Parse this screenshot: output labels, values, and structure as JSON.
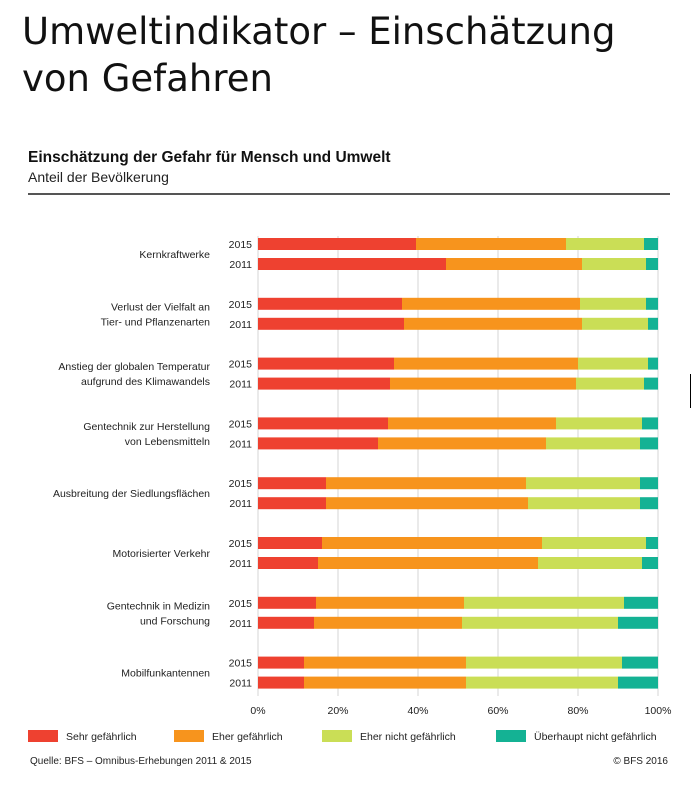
{
  "page_title": "Umweltindikator – Einschätzung von Gefahren",
  "chart_data": {
    "type": "bar",
    "orientation": "horizontal",
    "stacked": "percent",
    "title": "Einschätzung der Gefahr für Mensch und Umwelt",
    "subtitle": "Anteil der Bevölkerung",
    "xlim": [
      0,
      100
    ],
    "x_ticks": [
      "0%",
      "20%",
      "40%",
      "60%",
      "80%",
      "100%"
    ],
    "grid": true,
    "legend_position": "bottom",
    "series": [
      {
        "name": "Sehr gefährlich",
        "color": "#EE4130"
      },
      {
        "name": "Eher gefährlich",
        "color": "#F7941D"
      },
      {
        "name": "Eher nicht gefährlich",
        "color": "#CADE56"
      },
      {
        "name": "Überhaupt nicht gefährlich",
        "color": "#14B294"
      }
    ],
    "categories": [
      {
        "label": [
          "Kernkraftwerke"
        ],
        "rows": [
          {
            "year": "2015",
            "values": [
              39.5,
              37.5,
              19.5,
              3.5
            ]
          },
          {
            "year": "2011",
            "values": [
              47,
              34,
              16,
              3
            ]
          }
        ]
      },
      {
        "label": [
          "Verlust der Vielfalt an",
          "Tier- und Pflanzenarten"
        ],
        "rows": [
          {
            "year": "2015",
            "values": [
              36,
              44.5,
              16.5,
              3
            ]
          },
          {
            "year": "2011",
            "values": [
              36.5,
              44.5,
              16.5,
              2.5
            ]
          }
        ]
      },
      {
        "label": [
          "Anstieg der globalen Temperatur",
          "aufgrund des Klimawandels"
        ],
        "rows": [
          {
            "year": "2015",
            "values": [
              34,
              46,
              17.5,
              2.5
            ]
          },
          {
            "year": "2011",
            "values": [
              33,
              46.5,
              17,
              3.5
            ]
          }
        ]
      },
      {
        "label": [
          "Gentechnik zur Herstellung",
          "von Lebensmitteln"
        ],
        "rows": [
          {
            "year": "2015",
            "values": [
              32.5,
              42,
              21.5,
              4
            ]
          },
          {
            "year": "2011",
            "values": [
              30,
              42,
              23.5,
              4.5
            ]
          }
        ]
      },
      {
        "label": [
          "Ausbreitung der Siedlungsflächen"
        ],
        "rows": [
          {
            "year": "2015",
            "values": [
              17,
              50,
              28.5,
              4.5
            ]
          },
          {
            "year": "2011",
            "values": [
              17,
              50.5,
              28,
              4.5
            ]
          }
        ]
      },
      {
        "label": [
          "Motorisierter Verkehr"
        ],
        "rows": [
          {
            "year": "2015",
            "values": [
              16,
              55,
              26,
              3
            ]
          },
          {
            "year": "2011",
            "values": [
              15,
              55,
              26,
              4
            ]
          }
        ]
      },
      {
        "label": [
          "Gentechnik in Medizin",
          "und Forschung"
        ],
        "rows": [
          {
            "year": "2015",
            "values": [
              14.5,
              37,
              40,
              8.5
            ]
          },
          {
            "year": "2011",
            "values": [
              14,
              37,
              39,
              10
            ]
          }
        ]
      },
      {
        "label": [
          "Mobilfunkantennen"
        ],
        "rows": [
          {
            "year": "2015",
            "values": [
              11.5,
              40.5,
              39,
              9
            ]
          },
          {
            "year": "2011",
            "values": [
              11.5,
              40.5,
              38,
              10
            ]
          }
        ]
      }
    ]
  },
  "footer": {
    "source": "Quelle: BFS – Omnibus-Erhebungen 2011 & 2015",
    "copyright": "© BFS  2016"
  }
}
